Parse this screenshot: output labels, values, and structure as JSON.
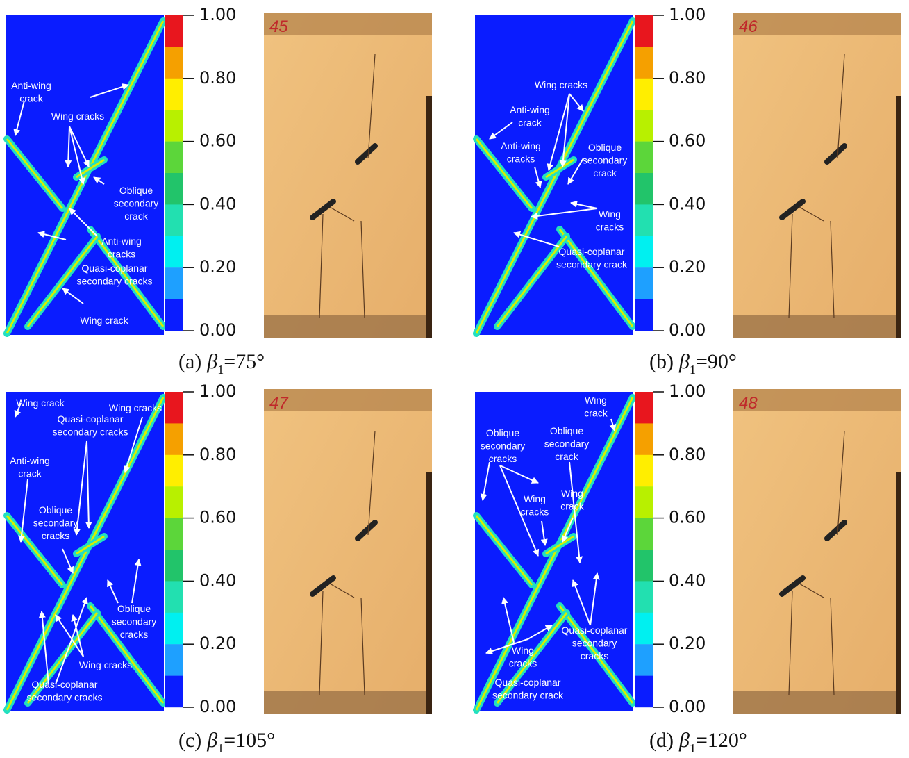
{
  "colorbar": {
    "ticks": [
      "1.00",
      "0.80",
      "0.60",
      "0.40",
      "0.20",
      "0.00"
    ]
  },
  "panels": [
    {
      "label": "(a)",
      "symbol": "β",
      "subscript": "1",
      "angle": "=75°",
      "specimen": "45",
      "annotations": [
        [
          "Anti-wing",
          "crack"
        ],
        [
          "Wing cracks"
        ],
        [
          "Oblique",
          "secondary",
          "crack"
        ],
        [
          "Anti-wing",
          "cracks"
        ],
        [
          "Quasi-coplanar",
          "secondary cracks"
        ],
        [
          "Wing crack"
        ]
      ]
    },
    {
      "label": "(b)",
      "symbol": "β",
      "subscript": "1",
      "angle": "=90°",
      "specimen": "46",
      "annotations": [
        [
          "Wing cracks"
        ],
        [
          "Anti-wing",
          "crack"
        ],
        [
          "Anti-wing",
          "cracks"
        ],
        [
          "Oblique",
          "secondary",
          "crack"
        ],
        [
          "Wing",
          "cracks"
        ],
        [
          "Quasi-coplanar",
          "secondary crack"
        ]
      ]
    },
    {
      "label": "(c)",
      "symbol": "β",
      "subscript": "1",
      "angle": "=105°",
      "specimen": "47",
      "annotations": [
        [
          "Wing crack"
        ],
        [
          "Wing cracks"
        ],
        [
          "Quasi-coplanar",
          "secondary cracks"
        ],
        [
          "Anti-wing",
          "crack"
        ],
        [
          "Oblique",
          "secondary",
          "cracks"
        ],
        [
          "Oblique",
          "secondary",
          "cracks"
        ],
        [
          "Wing cracks"
        ],
        [
          "Quasi-coplanar",
          "secondary cracks"
        ]
      ]
    },
    {
      "label": "(d)",
      "symbol": "β",
      "subscript": "1",
      "angle": "=120°",
      "specimen": "48",
      "annotations": [
        [
          "Wing",
          "crack"
        ],
        [
          "Oblique",
          "secondary",
          "cracks"
        ],
        [
          "Oblique",
          "secondary",
          "crack"
        ],
        [
          "Wing",
          "cracks"
        ],
        [
          "Wing",
          "crack"
        ],
        [
          "Quasi-coplanar",
          "secondary",
          "cracks"
        ],
        [
          "Wing",
          "cracks"
        ],
        [
          "Quasi-coplanar",
          "secondary crack"
        ]
      ]
    }
  ]
}
